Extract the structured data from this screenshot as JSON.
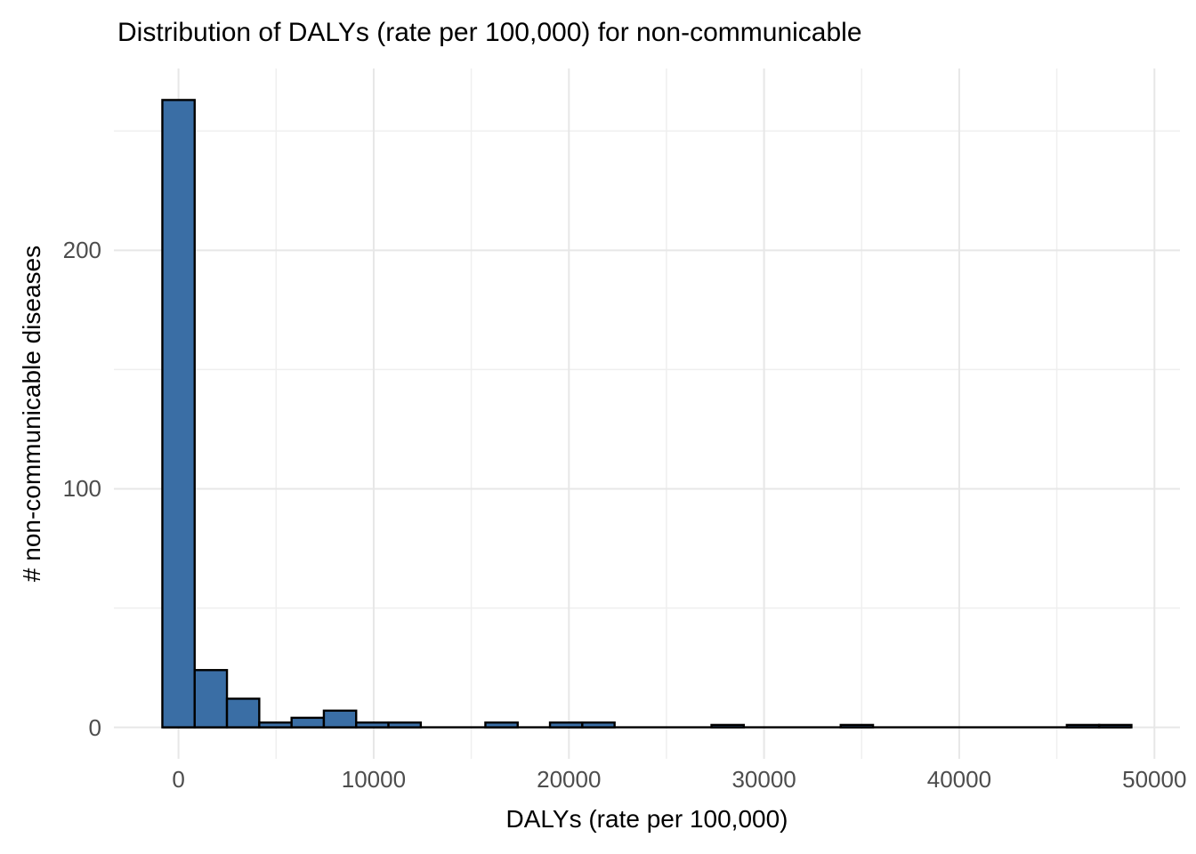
{
  "chart_data": {
    "type": "bar",
    "subtype": "histogram",
    "title": "Distribution of DALYs (rate per 100,000) for non-communicable",
    "xlabel": "DALYs (rate per 100,000)",
    "ylabel": "# non-communicable diseases",
    "bin_width": 1655,
    "bin_centers": [
      0,
      1655,
      3310,
      4965,
      6620,
      8275,
      9930,
      11585,
      13240,
      14895,
      16550,
      18205,
      19860,
      21515,
      23170,
      24825,
      26480,
      28135,
      29790,
      31445,
      33100,
      34755,
      36410,
      38065,
      39720,
      41375,
      43030,
      44685,
      46340,
      47995
    ],
    "counts": [
      263,
      24,
      12,
      2,
      4,
      7,
      2,
      2,
      0,
      0,
      2,
      0,
      2,
      2,
      0,
      0,
      0,
      1,
      0,
      0,
      0,
      1,
      0,
      0,
      0,
      0,
      0,
      0,
      1,
      1
    ],
    "x_ticks": [
      0,
      10000,
      20000,
      30000,
      40000,
      50000
    ],
    "y_ticks": [
      0,
      100,
      200
    ],
    "x_minor_gridlines": [
      5000,
      15000,
      25000,
      35000,
      45000
    ],
    "y_minor_gridlines": [
      50,
      150,
      250
    ],
    "xlim": [
      -3310,
      51310
    ],
    "ylim": [
      -13.2,
      276.2
    ],
    "grid": "on",
    "legend": "none",
    "colors": {
      "bar_fill": "#3A6EA5",
      "bar_stroke": "#000000",
      "grid_major": "#E7E7E7",
      "grid_minor": "#EFEFEF",
      "tick_text": "#4D4D4D",
      "title_text": "#000000",
      "background": "#FFFFFF"
    }
  }
}
